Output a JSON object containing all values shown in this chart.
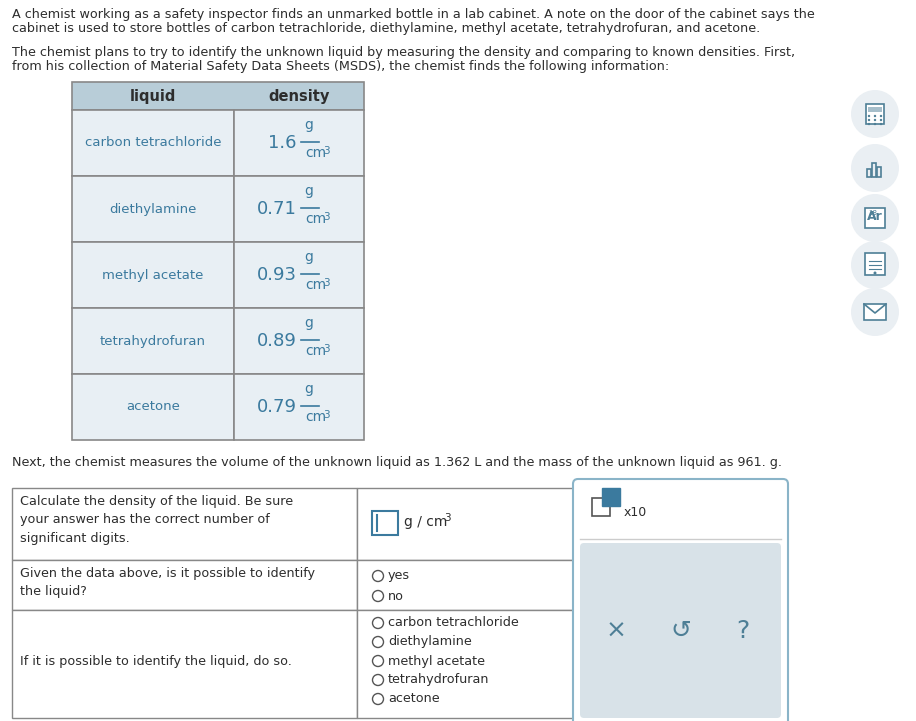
{
  "bg_color": "#ffffff",
  "text_color": "#2d2d2d",
  "teal_color": "#3b7a9e",
  "table_header_bg": "#b8cdd8",
  "table_row_bg": "#e8eff4",
  "table_border_color": "#888888",
  "para1_line1": "A chemist working as a safety inspector finds an unmarked bottle in a lab cabinet. A note on the door of the cabinet says the",
  "para1_line2": "cabinet is used to store bottles of carbon tetrachloride, diethylamine, methyl acetate, tetrahydrofuran, and acetone.",
  "para2_line1": "The chemist plans to try to identify the unknown liquid by measuring the density and comparing to known densities. First,",
  "para2_line2": "from his collection of Material Safety Data Sheets (MSDS), the chemist finds the following information:",
  "table_liquids": [
    "carbon tetrachloride",
    "diethylamine",
    "methyl acetate",
    "tetrahydrofuran",
    "acetone"
  ],
  "table_densities": [
    "1.6",
    "0.71",
    "0.93",
    "0.89",
    "0.79"
  ],
  "para3": "Next, the chemist measures the volume of the unknown liquid as 1.362 L and the mass of the unknown liquid as 961. g.",
  "q1_label": "Calculate the density of the liquid. Be sure\nyour answer has the correct number of\nsignificant digits.",
  "q2_label": "Given the data above, is it possible to identify\nthe liquid?",
  "q2_options": [
    "yes",
    "no"
  ],
  "q3_label": "If it is possible to identify the liquid, do so.",
  "q3_options": [
    "carbon tetrachloride",
    "diethylamine",
    "methyl acetate",
    "tetrahydrofuran",
    "acetone"
  ],
  "icon_circle_color": "#eaeff3",
  "icon_color": "#4e7f96",
  "panel_border": "#8ab4c8",
  "panel_btn_bg": "#d8e2e8",
  "panel_btn_color": "#4e7f96"
}
